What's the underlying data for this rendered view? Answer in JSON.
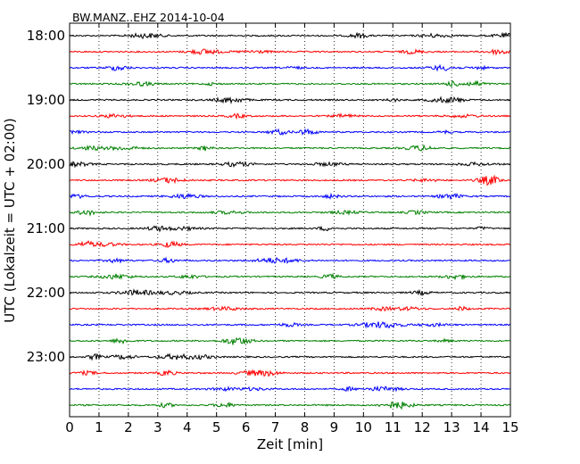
{
  "chart_data": {
    "type": "line",
    "title": "BW.MANZ..EHZ 2014-10-04",
    "xlabel": "Zeit  [min]",
    "ylabel": "UTC (Lokalzeit = UTC + 02:00)",
    "xlim": [
      0,
      15
    ],
    "x_ticks": [
      "0",
      "1",
      "2",
      "3",
      "4",
      "5",
      "6",
      "7",
      "8",
      "9",
      "10",
      "11",
      "12",
      "13",
      "14",
      "15"
    ],
    "y_ticks": [
      "18:00",
      "19:00",
      "20:00",
      "21:00",
      "22:00",
      "23:00"
    ],
    "grid": "x dotted",
    "trace_colors": [
      "#000000",
      "#ff0000",
      "#0000ff",
      "#008000"
    ],
    "traces": [
      {
        "start_utc": "18:00",
        "color": "#000000"
      },
      {
        "start_utc": "18:15",
        "color": "#ff0000"
      },
      {
        "start_utc": "18:30",
        "color": "#0000ff"
      },
      {
        "start_utc": "18:45",
        "color": "#008000"
      },
      {
        "start_utc": "19:00",
        "color": "#000000"
      },
      {
        "start_utc": "19:15",
        "color": "#ff0000"
      },
      {
        "start_utc": "19:30",
        "color": "#0000ff"
      },
      {
        "start_utc": "19:45",
        "color": "#008000"
      },
      {
        "start_utc": "20:00",
        "color": "#000000"
      },
      {
        "start_utc": "20:15",
        "color": "#ff0000"
      },
      {
        "start_utc": "20:30",
        "color": "#0000ff"
      },
      {
        "start_utc": "20:45",
        "color": "#008000"
      },
      {
        "start_utc": "21:00",
        "color": "#000000"
      },
      {
        "start_utc": "21:15",
        "color": "#ff0000"
      },
      {
        "start_utc": "21:30",
        "color": "#0000ff"
      },
      {
        "start_utc": "21:45",
        "color": "#008000"
      },
      {
        "start_utc": "22:00",
        "color": "#000000"
      },
      {
        "start_utc": "22:15",
        "color": "#ff0000"
      },
      {
        "start_utc": "22:30",
        "color": "#0000ff"
      },
      {
        "start_utc": "22:45",
        "color": "#008000"
      },
      {
        "start_utc": "23:00",
        "color": "#000000"
      },
      {
        "start_utc": "23:15",
        "color": "#ff0000"
      },
      {
        "start_utc": "23:30",
        "color": "#0000ff"
      },
      {
        "start_utc": "23:45",
        "color": "#008000"
      }
    ]
  }
}
